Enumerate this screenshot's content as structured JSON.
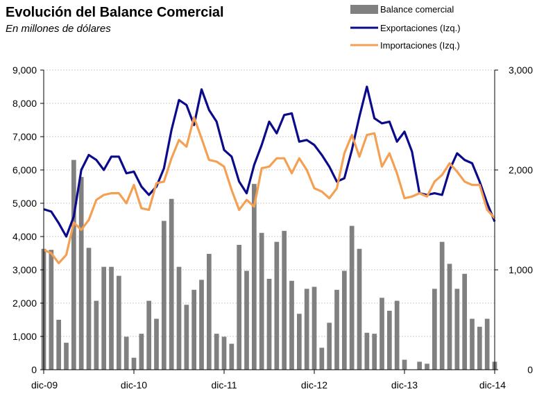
{
  "chart_data": {
    "type": "bar+line",
    "title": "Evolución del Balance Comercial",
    "subtitle": "En millones de dólares",
    "legend": [
      {
        "label": "Balance comercial",
        "color": "#808080",
        "kind": "bar"
      },
      {
        "label": "Exportaciones (Izq.)",
        "color": "#0a0a8a",
        "kind": "line"
      },
      {
        "label": "Importaciones (Izq.)",
        "color": "#f4a052",
        "kind": "line"
      }
    ],
    "legend_position": "top-right",
    "grid": true,
    "y_left": {
      "min": 0,
      "max": 9000,
      "ticks": [
        "0",
        "1,000",
        "2,000",
        "3,000",
        "4,000",
        "5,000",
        "6,000",
        "7,000",
        "8,000",
        "9,000"
      ]
    },
    "y_right": {
      "min": 0,
      "max": 3000,
      "ticks": [
        "0",
        "1,000",
        "2,000",
        "3,000"
      ]
    },
    "x_tick_labels": [
      "dic-09",
      "dic-10",
      "dic-11",
      "dic-12",
      "dic-13",
      "dic-14"
    ],
    "x_tick_indices": [
      0,
      12,
      24,
      36,
      48,
      60
    ],
    "series": [
      {
        "name": "Exportaciones (Izq.)",
        "axis": "left",
        "color": "#0a0a8a",
        "values": [
          4820,
          4750,
          4400,
          4000,
          4600,
          6000,
          6450,
          6300,
          6000,
          6400,
          6400,
          5900,
          5950,
          5500,
          5250,
          5500,
          6050,
          7200,
          8100,
          7950,
          7350,
          8420,
          7800,
          7450,
          6600,
          6400,
          5650,
          5300,
          6150,
          6750,
          7450,
          7100,
          7650,
          7700,
          6850,
          6900,
          6750,
          6450,
          6100,
          5650,
          5750,
          6600,
          7600,
          8500,
          7550,
          7400,
          7450,
          6850,
          7150,
          6550,
          5300,
          5250,
          5300,
          5250,
          6000,
          6500,
          6300,
          6200,
          5650,
          5000,
          4450
        ]
      },
      {
        "name": "Importaciones (Izq.)",
        "axis": "left",
        "color": "#f4a052",
        "values": [
          3600,
          3500,
          3200,
          3450,
          4420,
          4200,
          4500,
          5100,
          5250,
          5300,
          5300,
          5000,
          5550,
          4850,
          4800,
          5600,
          5650,
          6350,
          6900,
          6700,
          7580,
          6950,
          6300,
          6250,
          6100,
          5400,
          4800,
          5100,
          4900,
          6050,
          6100,
          6350,
          6350,
          5900,
          6350,
          6000,
          5450,
          5350,
          5150,
          5450,
          6500,
          7050,
          6400,
          7050,
          7100,
          6100,
          6500,
          5900,
          5150,
          5200,
          5300,
          5200,
          5650,
          5850,
          6200,
          5950,
          5650,
          5550,
          5550,
          4800,
          4550
        ]
      },
      {
        "name": "Balance comercial",
        "axis": "right",
        "color": "#808080",
        "values": [
          1210,
          1200,
          500,
          270,
          2100,
          1930,
          1220,
          690,
          1030,
          1030,
          940,
          330,
          120,
          360,
          690,
          510,
          1490,
          1710,
          1030,
          650,
          800,
          900,
          1160,
          360,
          330,
          260,
          1250,
          990,
          1860,
          1370,
          910,
          1280,
          1390,
          890,
          560,
          810,
          830,
          220,
          470,
          800,
          990,
          1440,
          1210,
          370,
          360,
          720,
          590,
          690,
          100,
          0,
          80,
          60,
          810,
          1280,
          1060,
          810,
          960,
          510,
          430,
          510,
          80
        ]
      }
    ]
  }
}
